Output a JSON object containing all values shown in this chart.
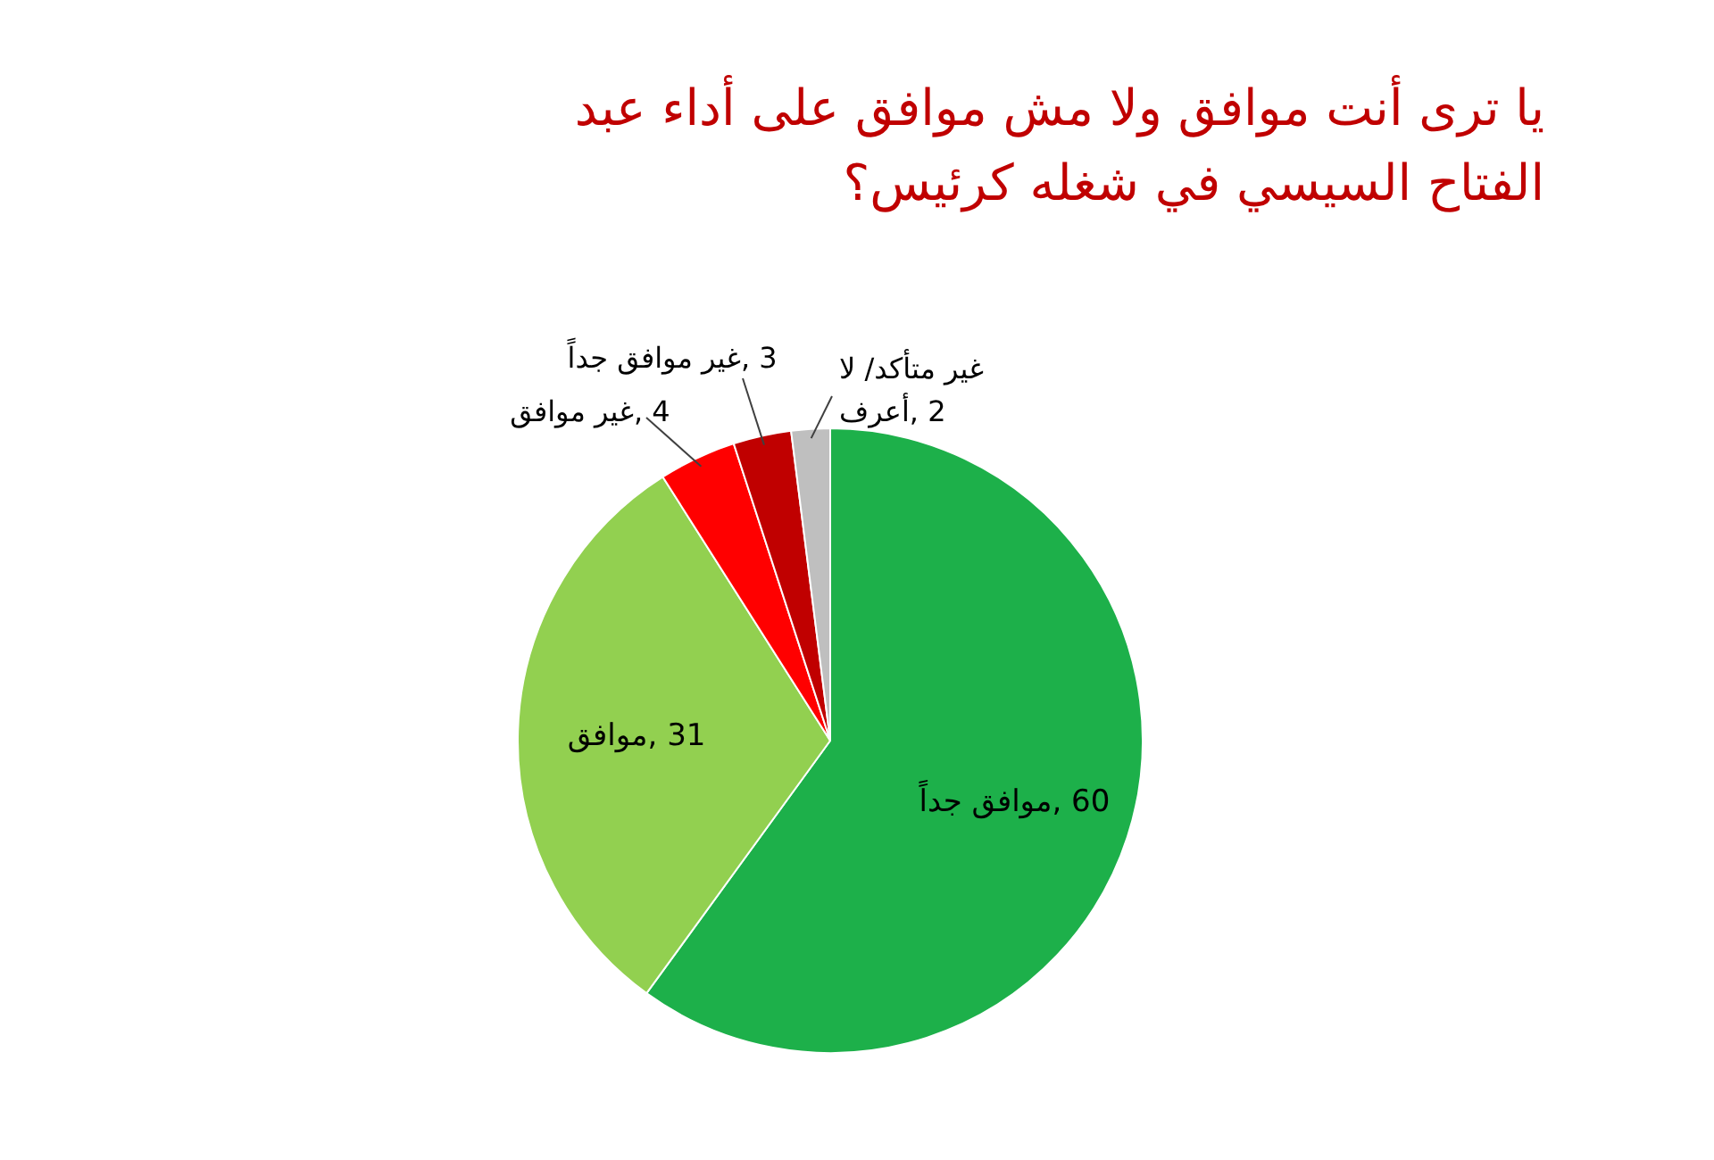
{
  "chart_data": {
    "type": "pie",
    "title": "يا ترى أنت موافق ولا مش موافق على أداء عبد الفتاح السيسي في شغله كرئيس؟",
    "categories": [
      "موافق جداً",
      "موافق",
      "غير موافق",
      "غير موافق جداً",
      "غير متأكد/ لا أعرف"
    ],
    "values": [
      60,
      31,
      4,
      3,
      2
    ],
    "value_labels": [
      ", 60",
      ", 31",
      ", 4",
      ", 3",
      ", 2"
    ],
    "colors": [
      "#1db04a",
      "#92d050",
      "#ff0000",
      "#c00000",
      "#bfbfbf"
    ]
  }
}
